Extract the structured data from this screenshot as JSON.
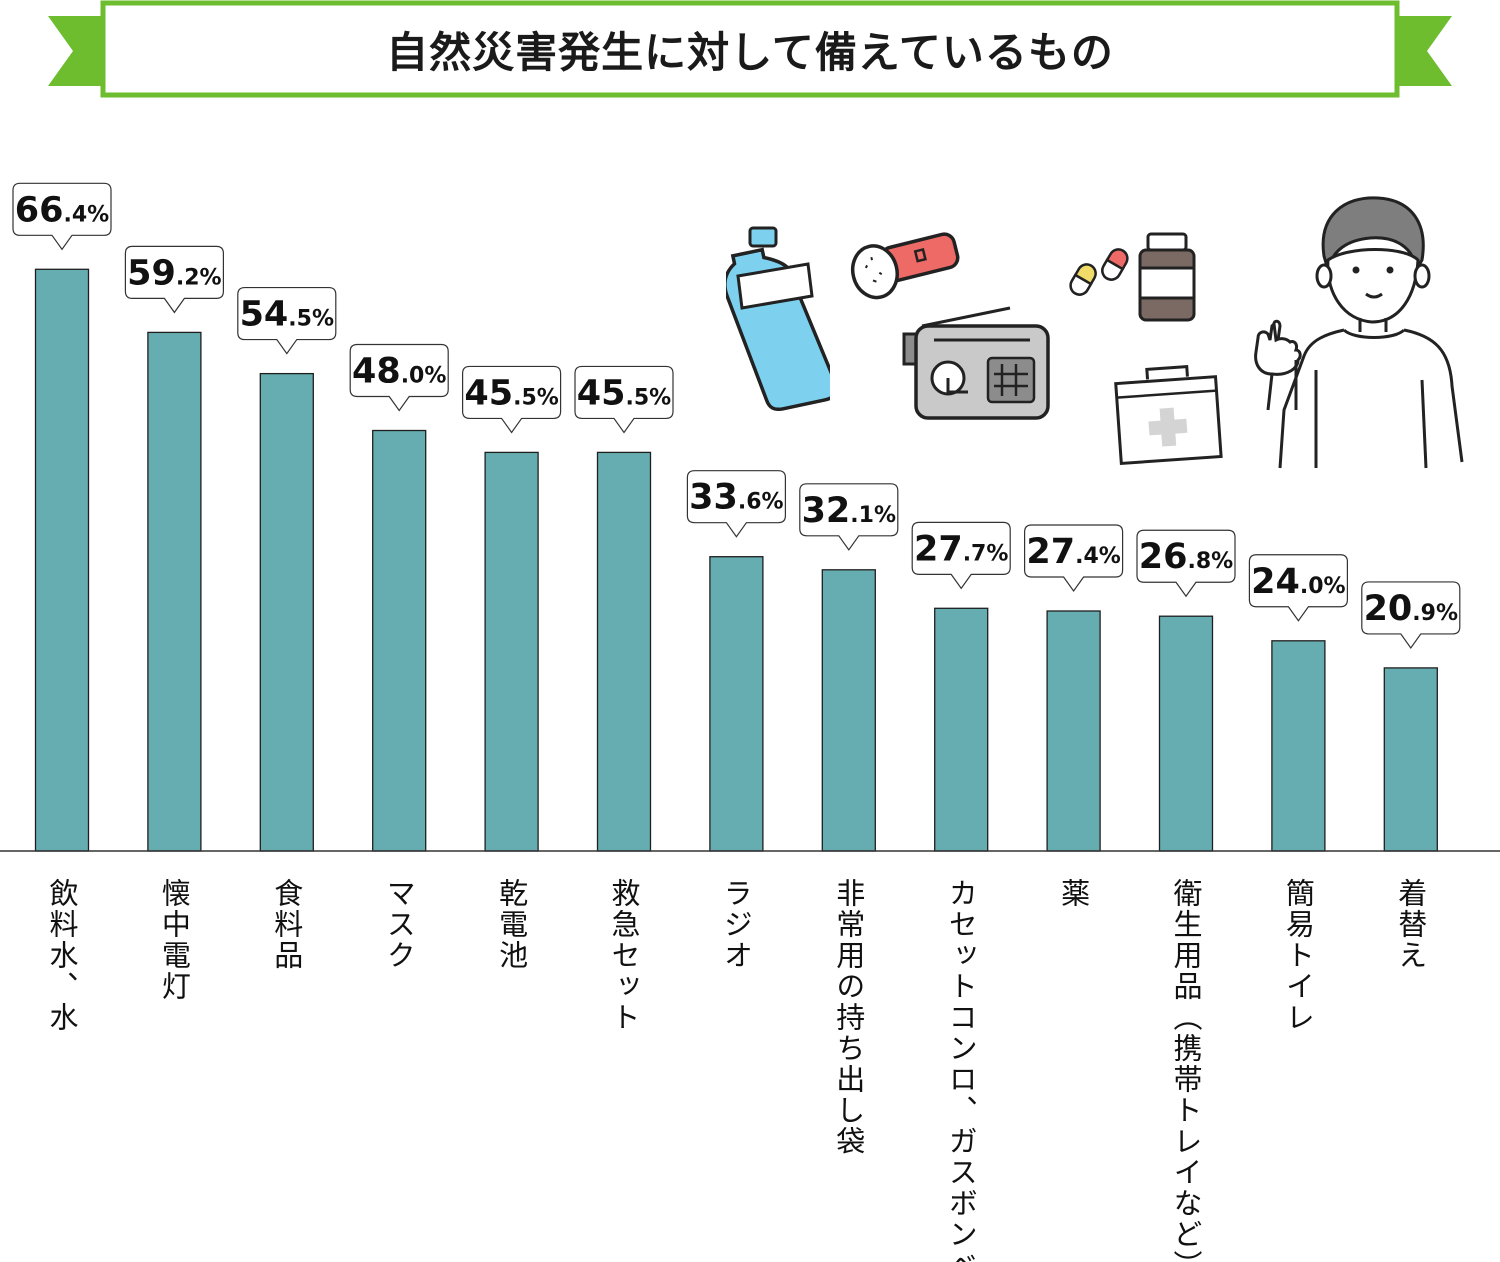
{
  "title": "自然災害発生に対して備えているもの",
  "colors": {
    "bar": "#66adb1",
    "banner_green": "#6dbd2e",
    "bottle_blue": "#7dd1ef",
    "flashlight_red": "#ee6a66",
    "radio_gray": "#c9c9c9",
    "medicine_brown": "#7a6a63"
  },
  "icons": [
    "water-bottle-icon",
    "flashlight-icon",
    "radio-icon",
    "pills-icon",
    "medicine-bottle-icon",
    "first-aid-kit-icon",
    "person-pointing-illustration"
  ],
  "chart_data": {
    "type": "bar",
    "title": "自然災害発生に対して備えているもの",
    "categories": [
      "飲料水、水",
      "懐中電灯",
      "食料品",
      "マスク",
      "乾電池",
      "救急セット",
      "ラジオ",
      "非常用の持ち出し袋",
      "カセットコンロ、ガスボンベ",
      "薬",
      "衛生用品（携帯トレイなど）",
      "簡易トイレ",
      "着替え"
    ],
    "values": [
      66.4,
      59.2,
      54.5,
      48.0,
      45.5,
      45.5,
      33.6,
      32.1,
      27.7,
      27.4,
      26.8,
      24.0,
      20.9
    ],
    "value_labels": [
      {
        "int": "66",
        "dec": ".4%"
      },
      {
        "int": "59",
        "dec": ".2%"
      },
      {
        "int": "54",
        "dec": ".5%"
      },
      {
        "int": "48",
        "dec": ".0%"
      },
      {
        "int": "45",
        "dec": ".5%"
      },
      {
        "int": "45",
        "dec": ".5%"
      },
      {
        "int": "33",
        "dec": ".6%"
      },
      {
        "int": "32",
        "dec": ".1%"
      },
      {
        "int": "27",
        "dec": ".7%"
      },
      {
        "int": "27",
        "dec": ".4%"
      },
      {
        "int": "26",
        "dec": ".8%"
      },
      {
        "int": "24",
        "dec": ".0%"
      },
      {
        "int": "20",
        "dec": ".9%"
      }
    ],
    "unit": "%",
    "xlabel": "",
    "ylabel": "",
    "ylim": [
      0,
      100
    ],
    "grid": false,
    "legend": "none"
  }
}
